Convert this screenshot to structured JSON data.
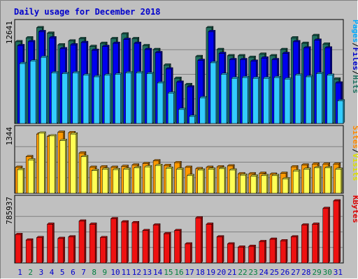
{
  "chart_data": {
    "type": "bar",
    "title": "Daily usage for December 2018",
    "days": [
      "1",
      "2",
      "3",
      "4",
      "5",
      "6",
      "7",
      "8",
      "9",
      "10",
      "11",
      "12",
      "13",
      "14",
      "15",
      "16",
      "17",
      "18",
      "19",
      "20",
      "21",
      "22",
      "23",
      "24",
      "25",
      "26",
      "27",
      "28",
      "29",
      "30",
      "31"
    ],
    "weekend_days": [
      "2",
      "8",
      "9",
      "15",
      "16",
      "22",
      "23",
      "29",
      "30"
    ],
    "colors": {
      "background": "#c0c0c0",
      "title": "#0000cc",
      "weekday_label": "#0000cc",
      "weekend_label": "#008040",
      "hits": "#207060",
      "files": "#0000ee",
      "pages": "#33ccff",
      "visits": "#ffff55",
      "sites": "#ff9900",
      "kbytes": "#ee1111"
    },
    "panels": [
      {
        "name": "hits-files-pages",
        "max_label": "12641",
        "max_value": 12641,
        "legend": [
          {
            "text": "Hits",
            "color": "#207060"
          },
          {
            "text": "Files",
            "color": "#0000cc"
          },
          {
            "text": "Pages",
            "color": "#00aaff"
          }
        ],
        "series": [
          {
            "name": "Hits",
            "color": "#207060",
            "values": [
              10500,
              11000,
              12300,
              11600,
              10100,
              10600,
              10900,
              9900,
              10300,
              10900,
              11500,
              10900,
              10000,
              9500,
              7500,
              5800,
              5000,
              8600,
              12300,
              9500,
              8700,
              8700,
              8500,
              8900,
              8700,
              9500,
              11000,
              10300,
              11300,
              10200,
              5700
            ]
          },
          {
            "name": "Files",
            "color": "#0000ee",
            "values": [
              10000,
              10500,
              11800,
              11000,
              9600,
              10100,
              10400,
              9400,
              9900,
              10300,
              10800,
              10300,
              9500,
              9100,
              7000,
              5300,
              4700,
              8100,
              11800,
              9000,
              8200,
              8200,
              8000,
              8400,
              8200,
              9000,
              10500,
              9700,
              10700,
              9700,
              5200
            ]
          },
          {
            "name": "Pages",
            "color": "#33ccff",
            "values": [
              7700,
              8000,
              8500,
              6500,
              6400,
              6500,
              6200,
              6000,
              6200,
              6300,
              6500,
              6500,
              6400,
              5200,
              3900,
              1800,
              900,
              3300,
              7800,
              6300,
              5800,
              5900,
              5800,
              5800,
              5900,
              5700,
              6200,
              6000,
              6400,
              6200,
              2900
            ]
          }
        ]
      },
      {
        "name": "visits-sites",
        "max_label": "1344",
        "max_value": 1344,
        "legend": [
          {
            "text": "Visits",
            "color": "#dddd00"
          },
          {
            "text": "Sites",
            "color": "#ff8800"
          }
        ],
        "series": [
          {
            "name": "Sites",
            "color": "#ff9900",
            "values": [
              560,
              790,
              1280,
              1230,
              1320,
              1310,
              870,
              560,
              570,
              560,
              580,
              610,
              640,
              700,
              600,
              660,
              560,
              530,
              560,
              570,
              590,
              420,
              420,
              430,
              410,
              430,
              570,
              610,
              630,
              630,
              630
            ]
          },
          {
            "name": "Visits",
            "color": "#ffff55",
            "values": [
              510,
              720,
              1300,
              1240,
              1140,
              1280,
              790,
              490,
              520,
              510,
              520,
              550,
              570,
              600,
              540,
              520,
              380,
              500,
              520,
              530,
              500,
              390,
              370,
              380,
              380,
              310,
              480,
              520,
              550,
              550,
              520
            ]
          }
        ]
      },
      {
        "name": "kbytes",
        "max_label": "785937",
        "max_value": 785937,
        "legend": [
          {
            "text": "KBytes",
            "color": "#dd0000"
          }
        ],
        "series": [
          {
            "name": "KBytes",
            "color": "#ee1111",
            "values": [
              360000,
              290000,
              320000,
              490000,
              310000,
              330000,
              530000,
              490000,
              320000,
              560000,
              520000,
              510000,
              410000,
              480000,
              370000,
              410000,
              240000,
              570000,
              490000,
              330000,
              240000,
              200000,
              210000,
              270000,
              300000,
              280000,
              330000,
              480000,
              490000,
              690000,
              785937
            ]
          }
        ]
      }
    ]
  }
}
